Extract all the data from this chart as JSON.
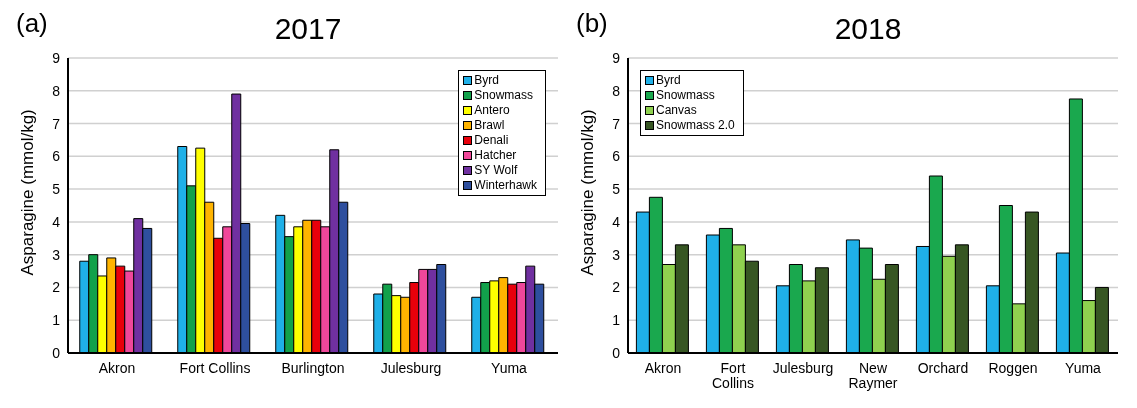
{
  "chart_data": [
    {
      "type": "bar",
      "title": "2017",
      "ylabel": "Asparagine  (mmol/kg)",
      "annotations": [
        "(a)"
      ],
      "categories": [
        "Akron",
        "Fort Collins",
        "Burlington",
        "Julesburg",
        "Yuma"
      ],
      "ylim": [
        0,
        9
      ],
      "yticks": [
        0,
        1,
        2,
        3,
        4,
        5,
        6,
        7,
        8,
        9
      ],
      "grid": "y",
      "legend": "top right",
      "series": [
        {
          "name": "Byrd",
          "color": "#1fb0e8",
          "values": [
            2.8,
            6.3,
            4.2,
            1.8,
            1.7
          ]
        },
        {
          "name": "Snowmass",
          "color": "#12a14b",
          "values": [
            3.0,
            5.1,
            3.55,
            2.1,
            2.15
          ]
        },
        {
          "name": "Antero",
          "color": "#ffff00",
          "values": [
            2.35,
            6.25,
            3.85,
            1.75,
            2.2
          ]
        },
        {
          "name": "Brawl",
          "color": "#ffb400",
          "values": [
            2.9,
            4.6,
            4.05,
            1.7,
            2.3
          ]
        },
        {
          "name": "Denali",
          "color": "#e8000b",
          "values": [
            2.65,
            3.5,
            4.05,
            2.15,
            2.1
          ]
        },
        {
          "name": "Hatcher",
          "color": "#f0479a",
          "values": [
            2.5,
            3.85,
            3.85,
            2.55,
            2.15
          ]
        },
        {
          "name": "SY Wolf",
          "color": "#7030a0",
          "values": [
            4.1,
            7.9,
            6.2,
            2.55,
            2.65
          ]
        },
        {
          "name": "Winterhawk",
          "color": "#2e4f9e",
          "values": [
            3.8,
            3.95,
            4.6,
            2.7,
            2.1
          ]
        }
      ]
    },
    {
      "type": "bar",
      "title": "2018",
      "ylabel": "Asparagine  (mmol/kg)",
      "annotations": [
        "(b)"
      ],
      "categories": [
        "Akron",
        "Fort Collins",
        "Julesburg",
        "New Raymer",
        "Orchard",
        "Roggen",
        "Yuma"
      ],
      "ylim": [
        0,
        9
      ],
      "yticks": [
        0,
        1,
        2,
        3,
        4,
        5,
        6,
        7,
        8,
        9
      ],
      "grid": "y",
      "legend": "top left",
      "series": [
        {
          "name": "Byrd",
          "color": "#1fb0e8",
          "values": [
            4.3,
            3.6,
            2.05,
            3.45,
            3.25,
            2.05,
            3.05
          ]
        },
        {
          "name": "Snowmass",
          "color": "#1aa84e",
          "values": [
            4.75,
            3.8,
            2.7,
            3.2,
            5.4,
            4.5,
            7.75
          ]
        },
        {
          "name": "Canvas",
          "color": "#8fd14f",
          "values": [
            2.7,
            3.3,
            2.2,
            2.25,
            2.95,
            1.5,
            1.6
          ]
        },
        {
          "name": "Snowmass 2.0",
          "color": "#375623",
          "values": [
            3.3,
            2.8,
            2.6,
            2.7,
            3.3,
            4.3,
            2.0
          ]
        }
      ]
    }
  ]
}
